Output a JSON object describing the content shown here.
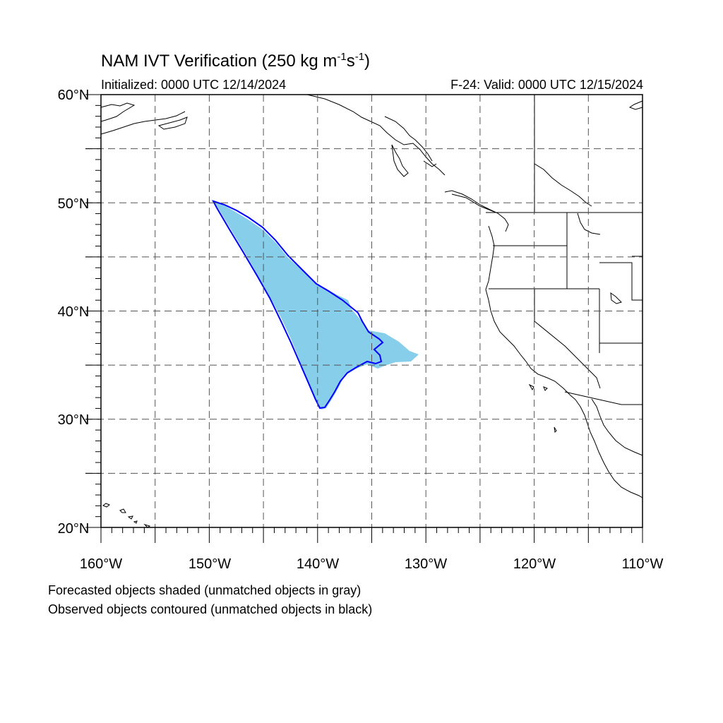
{
  "title": {
    "main": "NAM IVT Verification (250 kg m",
    "exp1": "-1",
    "mid": "s",
    "exp2": "-1",
    "end": ")"
  },
  "initialized": "Initialized: 0000 UTC 12/14/2024",
  "valid": "F-24: Valid: 0000 UTC 12/15/2024",
  "notes": [
    "Forecasted objects shaded (unmatched objects in gray)",
    "Observed objects contoured (unmatched objects in black)"
  ],
  "map": {
    "lon_range": [
      -160,
      -110
    ],
    "lat_range": [
      20,
      60
    ],
    "lat_labels": [
      "20°N",
      "30°N",
      "40°N",
      "50°N",
      "60°N"
    ],
    "lon_labels": [
      "160°W",
      "150°W",
      "140°W",
      "130°W",
      "120°W",
      "110°W"
    ],
    "gridlines_lon": [
      -155,
      -150,
      -145,
      -140,
      -135,
      -130,
      -125,
      -120,
      -115
    ],
    "gridlines_lat": [
      25,
      30,
      35,
      40,
      45,
      50,
      55
    ],
    "colors": {
      "forecast_fill": "#87ceeb",
      "observed_contour": "#0000ff",
      "coastline": "#000000",
      "grid": "#555555"
    }
  }
}
